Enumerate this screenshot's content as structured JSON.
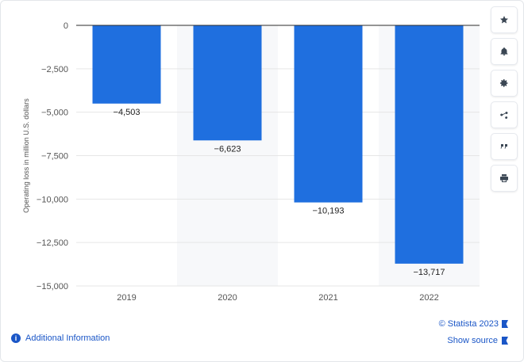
{
  "chart_data": {
    "type": "bar",
    "categories": [
      "2019",
      "2020",
      "2021",
      "2022"
    ],
    "values": [
      -4503,
      -6623,
      -10193,
      -13717
    ],
    "value_labels": [
      "-4,503",
      "-6,623",
      "-10,193",
      "-13,717"
    ],
    "ylabel": "Operating loss in million U.S. dollars",
    "ylim": [
      -15000,
      0
    ],
    "yticks": [
      0,
      -2500,
      -5000,
      -7500,
      -10000,
      -12500,
      -15000
    ],
    "ytick_labels": [
      "0",
      "-2,500",
      "-5,000",
      "-7,500",
      "-10,000",
      "-12,500",
      "-15,000"
    ],
    "bar_color": "#1f6fdf",
    "grid": true
  },
  "toolbar": {
    "icons": [
      "star-icon",
      "bell-icon",
      "gear-icon",
      "share-icon",
      "quote-icon",
      "print-icon"
    ]
  },
  "footer": {
    "additional_info": "Additional Information",
    "credit": "© Statista 2023",
    "show_source": "Show source"
  },
  "colors": {
    "accent": "#1a56c7"
  }
}
